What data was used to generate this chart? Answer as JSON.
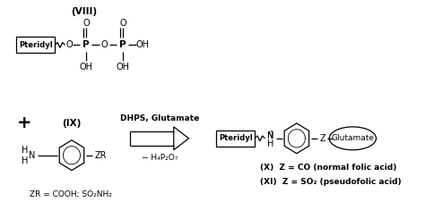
{
  "bg_color": "#ffffff",
  "fig_width": 4.74,
  "fig_height": 2.45,
  "dpi": 100,
  "label_VIII": "(VIII)",
  "label_IX": "(IX)",
  "label_X": "(X)  Z = CO (normal folic acid)",
  "label_XI": "(XI)  Z = SO₂ (pseudofolic acid)",
  "label_ZR": "ZR = COOH; SO₂NH₂",
  "label_DHPS": "DHPS, Glutamate",
  "label_minus": "− H₄P₂O₇",
  "label_plus": "+",
  "label_pteridyl_box1": "Pteridyl",
  "label_pteridyl_box2": "Pteridyl",
  "label_glutamate_oval": "Glutamate",
  "box_color": "#000000",
  "line_color": "#000000",
  "text_color": "#000000",
  "arrow_color": "#000000"
}
